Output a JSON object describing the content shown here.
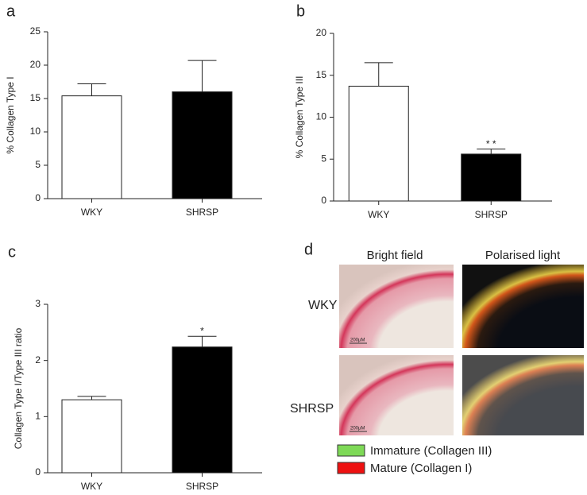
{
  "chart_data": [
    {
      "type": "bar",
      "panel": "a",
      "ylabel": "% Collagen Type I",
      "categories": [
        "WKY",
        "SHRSP"
      ],
      "values": [
        15.4,
        16.0
      ],
      "errors": [
        1.8,
        4.7
      ],
      "colors": [
        "#ffffff",
        "#000000"
      ],
      "ylim": [
        0,
        25
      ],
      "yticks": [
        0,
        5,
        10,
        15,
        20,
        25
      ]
    },
    {
      "type": "bar",
      "panel": "b",
      "ylabel": "% Collagen Type III",
      "categories": [
        "WKY",
        "SHRSP"
      ],
      "values": [
        13.7,
        5.6
      ],
      "errors": [
        2.8,
        0.6
      ],
      "colors": [
        "#ffffff",
        "#000000"
      ],
      "ylim": [
        0,
        20
      ],
      "yticks": [
        0,
        5,
        10,
        15,
        20
      ],
      "annotations": [
        {
          "category": "SHRSP",
          "text": "* *"
        }
      ]
    },
    {
      "type": "bar",
      "panel": "c",
      "ylabel": "Collagen Type I/Type III ratio",
      "categories": [
        "WKY",
        "SHRSP"
      ],
      "values": [
        1.3,
        2.24
      ],
      "errors": [
        0.06,
        0.19
      ],
      "colors": [
        "#ffffff",
        "#000000"
      ],
      "ylim": [
        0,
        3
      ],
      "yticks": [
        0,
        1,
        2,
        3
      ],
      "annotations": [
        {
          "category": "SHRSP",
          "text": "*"
        }
      ]
    }
  ],
  "panel_d": {
    "panel": "d",
    "columns": [
      "Bright field",
      "Polarised light"
    ],
    "rows": [
      "WKY",
      "SHRSP"
    ],
    "scale_bar": "200μM",
    "legend": [
      {
        "name": "Immature (Collagen III)",
        "color": "#7ed957"
      },
      {
        "name": "Mature (Collagen I)",
        "color": "#ee1111"
      }
    ]
  }
}
